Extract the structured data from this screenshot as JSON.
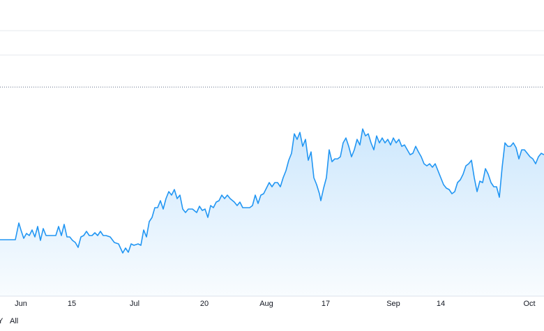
{
  "chart_data": {
    "type": "line",
    "x": [
      0,
      22,
      27,
      30,
      34,
      38,
      42,
      46,
      50,
      54,
      58,
      62,
      66,
      70,
      76,
      80,
      84,
      88,
      92,
      96,
      100,
      104,
      108,
      112,
      116,
      120,
      124,
      128,
      132,
      136,
      140,
      144,
      148,
      152,
      158,
      164,
      170,
      176,
      180,
      184,
      188,
      192,
      198,
      202,
      206,
      210,
      214,
      218,
      222,
      226,
      230,
      234,
      238,
      242,
      246,
      250,
      254,
      258,
      262,
      266,
      270,
      276,
      282,
      286,
      290,
      294,
      298,
      302,
      306,
      310,
      314,
      318,
      322,
      326,
      330,
      336,
      340,
      344,
      348,
      352,
      358,
      362,
      366,
      370,
      374,
      378,
      382,
      386,
      390,
      394,
      398,
      402,
      406,
      410,
      414,
      418,
      422,
      426,
      430,
      434,
      438,
      442,
      446,
      450,
      454,
      458,
      460,
      464,
      468,
      472,
      476,
      480,
      484,
      488,
      492,
      496,
      500,
      504,
      508,
      512,
      516,
      520,
      524,
      528,
      532,
      536,
      540,
      544,
      548,
      552,
      556,
      560,
      564,
      568,
      572,
      576,
      580,
      584,
      588,
      592,
      596,
      600,
      604,
      608,
      612,
      616,
      620,
      624,
      628,
      632,
      636,
      640,
      644,
      648,
      652,
      656,
      660,
      664,
      668,
      672,
      676,
      680,
      684,
      688,
      692,
      696,
      700,
      704,
      708,
      712,
      716,
      720,
      724,
      728,
      732,
      736,
      740,
      744,
      748,
      752,
      756,
      760,
      764,
      768,
      772,
      776,
      780
    ],
    "series": [
      {
        "color": "#2196f3",
        "values": [
          76,
          76,
          100,
          90,
          78,
          85,
          82,
          90,
          80,
          95,
          75,
          92,
          82,
          82,
          82,
          82,
          95,
          82,
          98,
          80,
          80,
          75,
          72,
          65,
          80,
          82,
          88,
          82,
          82,
          86,
          82,
          88,
          82,
          82,
          80,
          72,
          70,
          57,
          64,
          58,
          70,
          68,
          70,
          68,
          90,
          80,
          102,
          108,
          122,
          122,
          132,
          120,
          135,
          145,
          140,
          148,
          135,
          140,
          120,
          115,
          120,
          120,
          115,
          124,
          118,
          120,
          108,
          125,
          122,
          130,
          132,
          140,
          135,
          140,
          135,
          130,
          125,
          130,
          122,
          122,
          122,
          125,
          140,
          128,
          140,
          142,
          150,
          158,
          152,
          158,
          158,
          152,
          165,
          175,
          190,
          200,
          228,
          220,
          230,
          210,
          220,
          190,
          202,
          165,
          155,
          142,
          132,
          150,
          165,
          205,
          188,
          192,
          192,
          195,
          215,
          222,
          210,
          195,
          205,
          220,
          212,
          235,
          225,
          228,
          215,
          205,
          225,
          215,
          222,
          215,
          220,
          212,
          222,
          215,
          220,
          210,
          212,
          205,
          198,
          200,
          210,
          202,
          195,
          185,
          182,
          185,
          180,
          185,
          175,
          165,
          155,
          150,
          148,
          142,
          145,
          158,
          162,
          170,
          182,
          185,
          190,
          165,
          145,
          160,
          158,
          178,
          170,
          158,
          152,
          152,
          137,
          180,
          215,
          210,
          210,
          215,
          208,
          192,
          205,
          205,
          200,
          195,
          192,
          185,
          195,
          200,
          198
        ]
      }
    ],
    "xlim": [
      0,
      780
    ],
    "ylim": [
      0,
      420
    ],
    "xticks": [
      {
        "value": 30,
        "label": "Jun"
      },
      {
        "value": 103,
        "label": "15"
      },
      {
        "value": 193,
        "label": "Jul"
      },
      {
        "value": 293,
        "label": "20"
      },
      {
        "value": 382,
        "label": "Aug"
      },
      {
        "value": 467,
        "label": "17"
      },
      {
        "value": 564,
        "label": "Sep"
      },
      {
        "value": 632,
        "label": "14"
      },
      {
        "value": 759,
        "label": "Oct"
      }
    ],
    "yticks": [
      341,
      376
    ],
    "reference_line": 295,
    "grid": true
  },
  "range_buttons": [
    "Y",
    "All"
  ]
}
